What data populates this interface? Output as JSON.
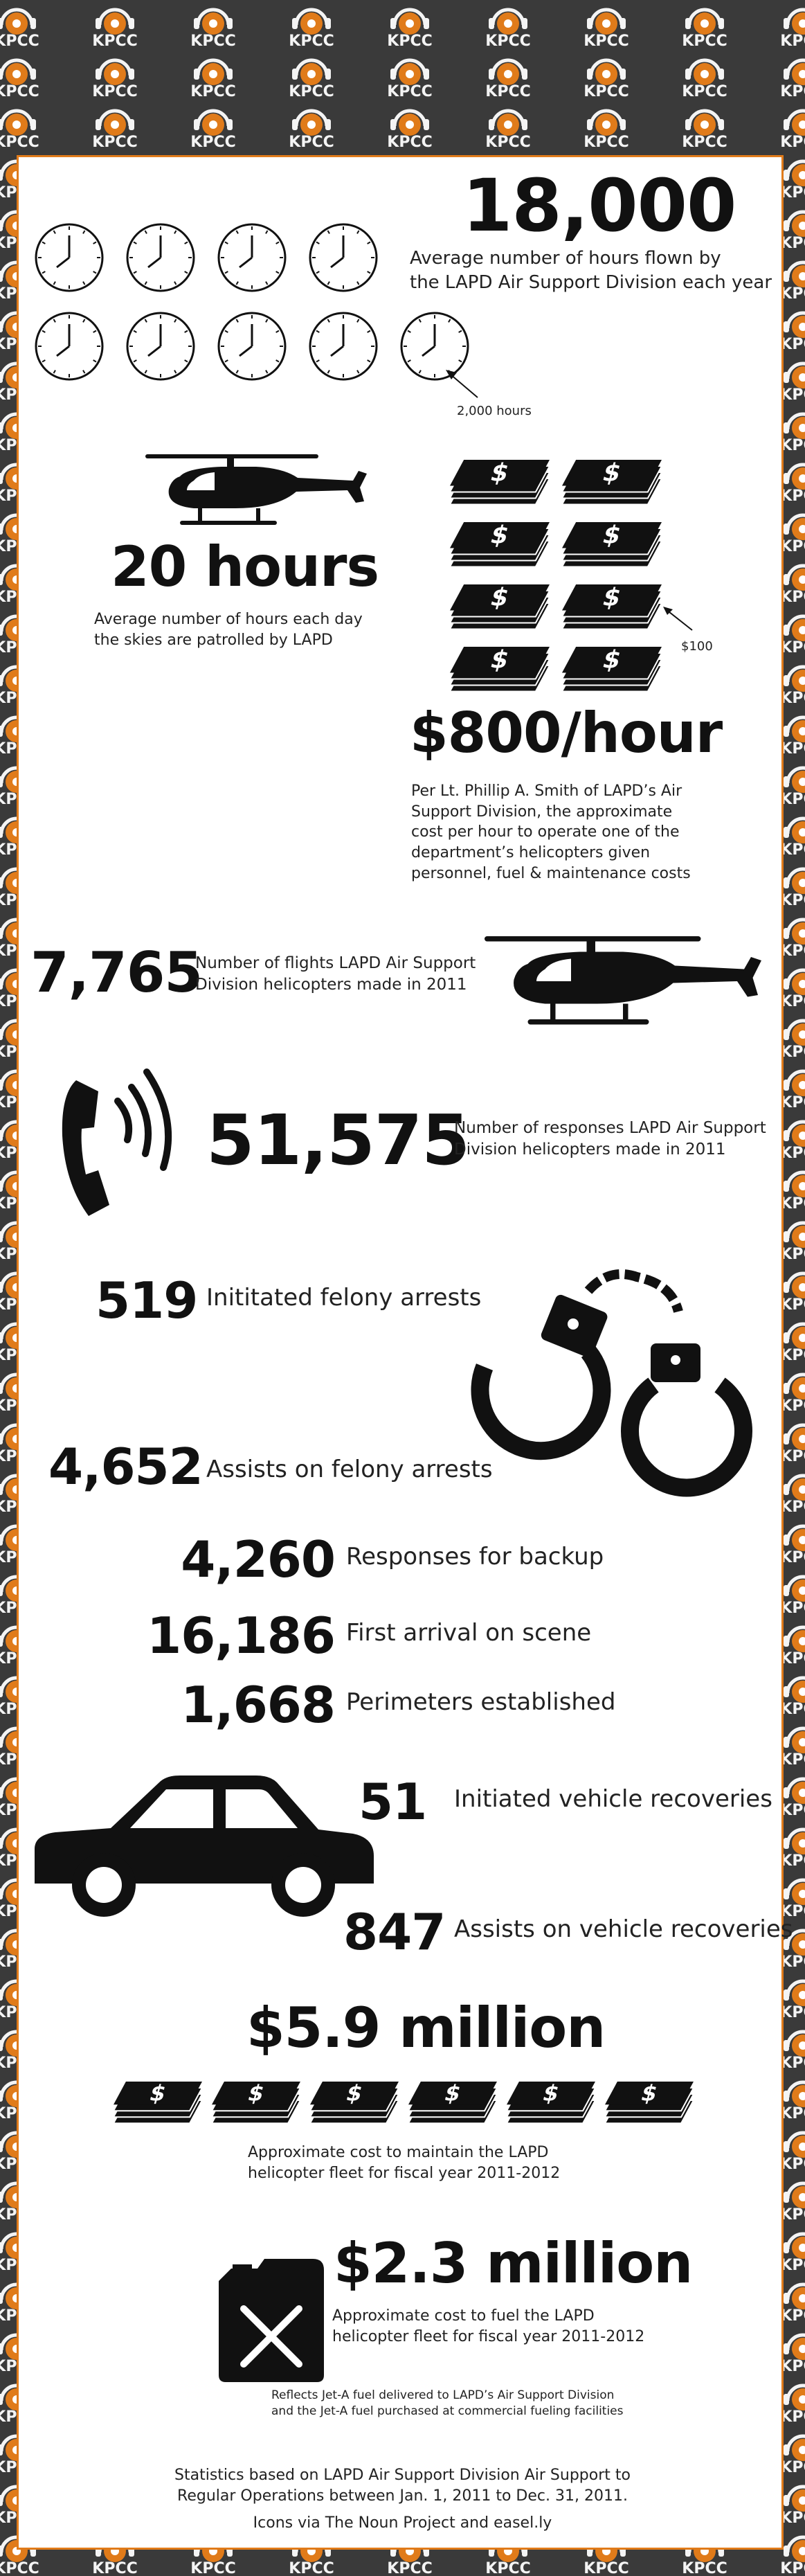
{
  "brand": {
    "logo_text": "KPCC",
    "accent_color": "#e07b1a",
    "background_color": "#3a3a3a"
  },
  "hours_flown": {
    "value": "18,000",
    "desc_line1": "Average number of hours flown by",
    "desc_line2": "the LAPD Air Support Division each year",
    "clock_note": "2,000 hours",
    "clock_count": 9
  },
  "patrol": {
    "value": "20 hours",
    "desc_line1": "Average number of hours each day",
    "desc_line2": "the skies are patrolled by LAPD"
  },
  "cost": {
    "money_note": "$100",
    "bill_count": 8,
    "value": "$800/hour",
    "desc_lines": [
      "Per Lt. Phillip A. Smith of LAPD’s  Air",
      "Support Division, the approximate",
      "cost per hour to operate one of the",
      "department’s helicopters given",
      "personnel, fuel & maintenance costs"
    ]
  },
  "flights": {
    "value": "7,765",
    "desc_line1": "Number of flights LAPD Air Support",
    "desc_line2": "Division helicopters made in 2011"
  },
  "responses": {
    "value": "51,575",
    "desc_line1": "Number of responses LAPD Air Support",
    "desc_line2": "Division helicopters made in 2011"
  },
  "arrests": {
    "felony_initiated": {
      "value": "519",
      "label": "Inititated felony arrests"
    },
    "felony_assists": {
      "value": "4,652",
      "label": "Assists on felony arrests"
    }
  },
  "operations": [
    {
      "value": "4,260",
      "label": "Responses for backup"
    },
    {
      "value": "16,186",
      "label": "First arrival on scene"
    },
    {
      "value": "1,668",
      "label": "Perimeters established"
    }
  ],
  "vehicles": {
    "initiated": {
      "value": "51",
      "label": "Initiated vehicle recoveries"
    },
    "assists": {
      "value": "847",
      "label": "Assists on vehicle recoveries"
    }
  },
  "maintenance": {
    "value": "$5.9 million",
    "desc_line1": "Approximate cost to maintain the LAPD",
    "desc_line2": "helicopter fleet for fiscal year 2011-2012",
    "bill_count": 6
  },
  "fuel": {
    "value": "$2.3 million",
    "desc_line1": "Approximate cost to fuel the LAPD",
    "desc_line2": "helicopter fleet for fiscal year 2011-2012",
    "note_line1": "Reflects Jet-A fuel delivered to LAPD’s Air Support Division",
    "note_line2": "and the Jet-A fuel purchased at commercial fueling facilities"
  },
  "footer": {
    "line1": "Statistics based on LAPD Air Support Division Air Support to",
    "line2": "Regular Operations between Jan. 1, 2011 to Dec. 31, 2011.",
    "credits": "Icons via The Noun Project and easel.ly"
  }
}
